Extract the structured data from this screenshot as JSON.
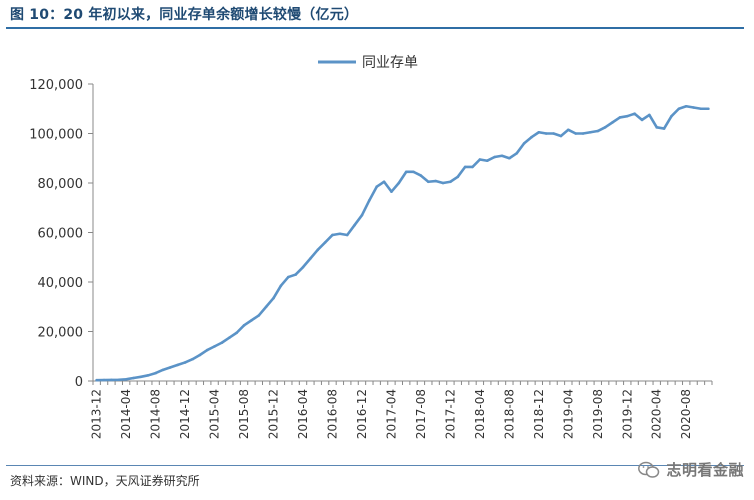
{
  "header": {
    "title": "图 10：20 年初以来，同业存单余额增长较慢（亿元）"
  },
  "footer": {
    "source": "资料来源：WIND，天风证券研究所",
    "watermark_text": "志明看金融",
    "watermark_icon": "wechat-icon"
  },
  "colors": {
    "series": "#5b93c7",
    "axis": "#888888",
    "title": "#1f4a73"
  },
  "chart_data": {
    "type": "line",
    "title": "",
    "xlabel": "",
    "ylabel": "",
    "ylim": [
      0,
      120000
    ],
    "yticks": [
      0,
      20000,
      40000,
      60000,
      80000,
      100000,
      120000
    ],
    "ytick_labels": [
      "0",
      "20,000",
      "40,000",
      "60,000",
      "80,000",
      "100,000",
      "120,000"
    ],
    "xtick_labels": [
      "2013-12",
      "2014-04",
      "2014-08",
      "2014-12",
      "2015-04",
      "2015-08",
      "2015-12",
      "2016-04",
      "2016-08",
      "2016-12",
      "2017-04",
      "2017-08",
      "2017-12",
      "2018-04",
      "2018-08",
      "2018-12",
      "2019-04",
      "2019-08",
      "2019-12",
      "2020-04",
      "2020-08"
    ],
    "grid": false,
    "legend_position": "top-center",
    "series": [
      {
        "name": "同业存单",
        "x": [
          "2013-12",
          "2014-01",
          "2014-02",
          "2014-03",
          "2014-04",
          "2014-05",
          "2014-06",
          "2014-07",
          "2014-08",
          "2014-09",
          "2014-10",
          "2014-11",
          "2014-12",
          "2015-01",
          "2015-02",
          "2015-03",
          "2015-04",
          "2015-05",
          "2015-06",
          "2015-07",
          "2015-08",
          "2015-09",
          "2015-10",
          "2015-11",
          "2015-12",
          "2016-01",
          "2016-02",
          "2016-03",
          "2016-04",
          "2016-05",
          "2016-06",
          "2016-07",
          "2016-08",
          "2016-09",
          "2016-10",
          "2016-11",
          "2016-12",
          "2017-01",
          "2017-02",
          "2017-03",
          "2017-04",
          "2017-05",
          "2017-06",
          "2017-07",
          "2017-08",
          "2017-09",
          "2017-10",
          "2017-11",
          "2017-12",
          "2018-01",
          "2018-02",
          "2018-03",
          "2018-04",
          "2018-05",
          "2018-06",
          "2018-07",
          "2018-08",
          "2018-09",
          "2018-10",
          "2018-11",
          "2018-12",
          "2019-01",
          "2019-02",
          "2019-03",
          "2019-04",
          "2019-05",
          "2019-06",
          "2019-07",
          "2019-08",
          "2019-09",
          "2019-10",
          "2019-11",
          "2019-12",
          "2020-01",
          "2020-02",
          "2020-03",
          "2020-04",
          "2020-05",
          "2020-06",
          "2020-07",
          "2020-08",
          "2020-09",
          "2020-10",
          "2020-11"
        ],
        "values": [
          340,
          400,
          450,
          500,
          700,
          1200,
          1700,
          2300,
          3200,
          4500,
          5500,
          6500,
          7500,
          8800,
          10500,
          12500,
          14000,
          15500,
          17500,
          19500,
          22500,
          24500,
          26500,
          30000,
          33500,
          38500,
          42000,
          43000,
          46000,
          49500,
          53000,
          56000,
          59000,
          59500,
          59000,
          63000,
          67000,
          73000,
          78500,
          80500,
          76500,
          80000,
          84500,
          84500,
          83000,
          80500,
          80800,
          80000,
          80500,
          82500,
          86500,
          86500,
          89500,
          89000,
          90500,
          91000,
          90000,
          92000,
          96000,
          98500,
          100500,
          100000,
          100000,
          99000,
          101500,
          100000,
          100000,
          100500,
          101000,
          102500,
          104500,
          106500,
          107000,
          108000,
          105500,
          107500,
          102500,
          102000,
          107000,
          110000,
          111000,
          110500,
          110000,
          110000
        ]
      }
    ]
  }
}
